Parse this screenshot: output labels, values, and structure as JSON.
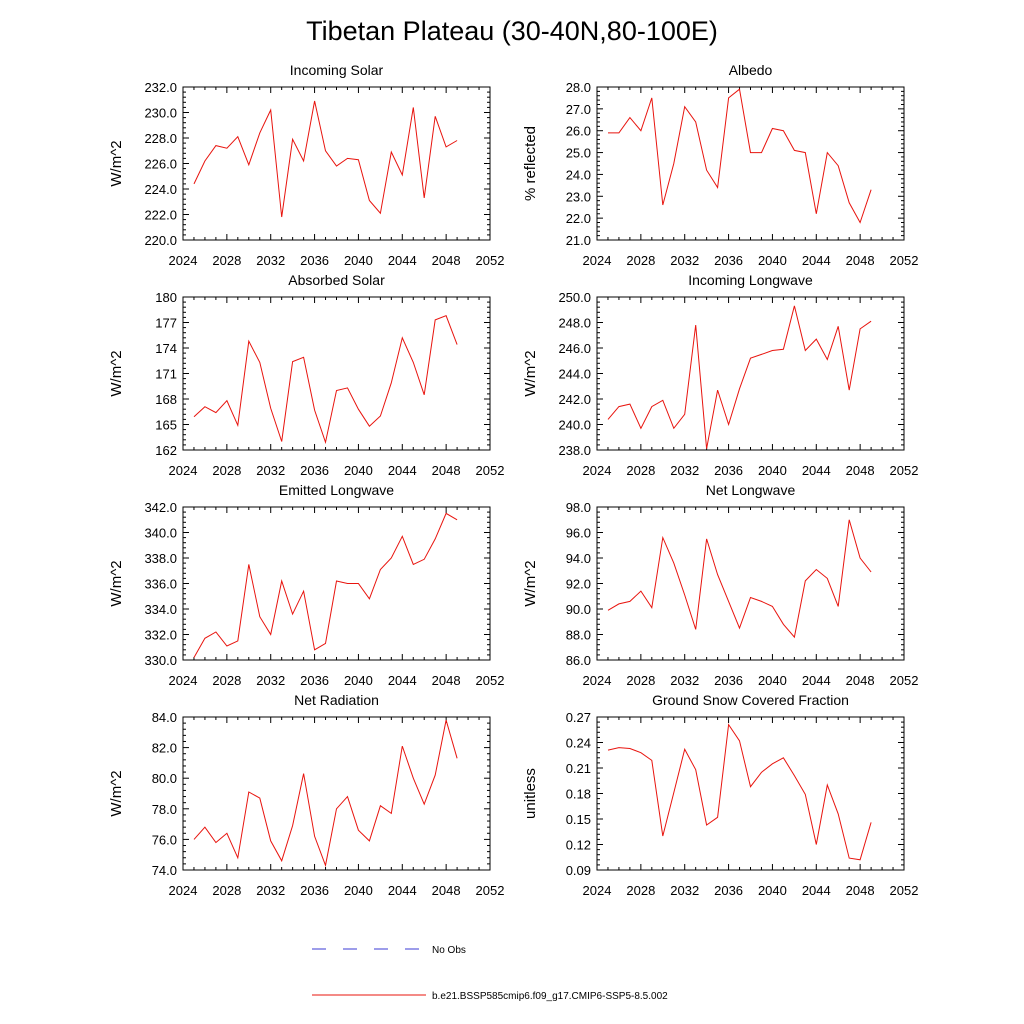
{
  "figure": {
    "title": "Tibetan Plateau (30-40N,80-100E)"
  },
  "legend": {
    "obs_label": "No Obs",
    "model_label": "b.e21.BSSP585cmip6.f09_g17.CMIP6-SSP5-8.5.002",
    "obs_color": "#3b3bd6",
    "model_color": "#e8140e"
  },
  "chart_data": [
    {
      "type": "line",
      "title": "Incoming Solar",
      "ylabel": "W/m^2",
      "xlim": [
        2024,
        2052
      ],
      "xticks": [
        2024,
        2028,
        2032,
        2036,
        2040,
        2044,
        2048,
        2052
      ],
      "ylim": [
        220,
        232
      ],
      "yticks": [
        220,
        222,
        224,
        226,
        228,
        230,
        232
      ],
      "ydecimals": 1,
      "series": [
        {
          "x": [
            2025,
            2026,
            2027,
            2028,
            2029,
            2030,
            2031,
            2032,
            2033,
            2034,
            2035,
            2036,
            2037,
            2038,
            2039,
            2040,
            2041,
            2042,
            2043,
            2044,
            2045,
            2046,
            2047,
            2048,
            2049
          ],
          "values": [
            224.4,
            226.2,
            227.4,
            227.2,
            228.1,
            225.9,
            228.4,
            230.2,
            221.8,
            227.9,
            226.2,
            230.9,
            227.0,
            225.8,
            226.4,
            226.3,
            223.1,
            222.1,
            226.9,
            225.1,
            230.4,
            223.3,
            229.7,
            227.3,
            227.8
          ]
        }
      ]
    },
    {
      "type": "line",
      "title": "Albedo",
      "ylabel": "% reflected",
      "xlim": [
        2024,
        2052
      ],
      "xticks": [
        2024,
        2028,
        2032,
        2036,
        2040,
        2044,
        2048,
        2052
      ],
      "ylim": [
        21,
        28
      ],
      "yticks": [
        21,
        22,
        23,
        24,
        25,
        26,
        27,
        28
      ],
      "ydecimals": 1,
      "series": [
        {
          "x": [
            2025,
            2026,
            2027,
            2028,
            2029,
            2030,
            2031,
            2032,
            2033,
            2034,
            2035,
            2036,
            2037,
            2038,
            2039,
            2040,
            2041,
            2042,
            2043,
            2044,
            2045,
            2046,
            2047,
            2048,
            2049
          ],
          "values": [
            25.9,
            25.9,
            26.6,
            26.0,
            27.5,
            22.6,
            24.5,
            27.1,
            26.4,
            24.2,
            23.4,
            27.5,
            27.9,
            25.0,
            25.0,
            26.1,
            26.0,
            25.1,
            25.0,
            22.2,
            25.0,
            24.4,
            22.7,
            21.8,
            23.3
          ]
        }
      ]
    },
    {
      "type": "line",
      "title": "Absorbed Solar",
      "ylabel": "W/m^2",
      "xlim": [
        2024,
        2052
      ],
      "xticks": [
        2024,
        2028,
        2032,
        2036,
        2040,
        2044,
        2048,
        2052
      ],
      "ylim": [
        162,
        180
      ],
      "yticks": [
        162,
        165,
        168,
        171,
        174,
        177,
        180
      ],
      "ydecimals": 0,
      "series": [
        {
          "x": [
            2025,
            2026,
            2027,
            2028,
            2029,
            2030,
            2031,
            2032,
            2033,
            2034,
            2035,
            2036,
            2037,
            2038,
            2039,
            2040,
            2041,
            2042,
            2043,
            2044,
            2045,
            2046,
            2047,
            2048,
            2049
          ],
          "values": [
            165.9,
            167.1,
            166.4,
            167.8,
            164.9,
            174.8,
            172.3,
            166.9,
            163.0,
            172.4,
            172.9,
            166.7,
            162.9,
            169.0,
            169.3,
            166.8,
            164.8,
            166.0,
            169.9,
            175.2,
            172.3,
            168.5,
            177.3,
            177.8,
            174.4
          ]
        }
      ]
    },
    {
      "type": "line",
      "title": "Incoming Longwave",
      "ylabel": "W/m^2",
      "xlim": [
        2024,
        2052
      ],
      "xticks": [
        2024,
        2028,
        2032,
        2036,
        2040,
        2044,
        2048,
        2052
      ],
      "ylim": [
        238,
        250
      ],
      "yticks": [
        238,
        240,
        242,
        244,
        246,
        248,
        250
      ],
      "ydecimals": 1,
      "series": [
        {
          "x": [
            2025,
            2026,
            2027,
            2028,
            2029,
            2030,
            2031,
            2032,
            2033,
            2034,
            2035,
            2036,
            2037,
            2038,
            2039,
            2040,
            2041,
            2042,
            2043,
            2044,
            2045,
            2046,
            2047,
            2048,
            2049
          ],
          "values": [
            240.4,
            241.4,
            241.6,
            239.7,
            241.4,
            241.9,
            239.7,
            240.8,
            247.8,
            238.1,
            242.7,
            240.0,
            242.8,
            245.2,
            245.5,
            245.8,
            245.9,
            249.3,
            245.8,
            246.7,
            245.1,
            247.7,
            242.7,
            247.5,
            248.1
          ]
        }
      ]
    },
    {
      "type": "line",
      "title": "Emitted Longwave",
      "ylabel": "W/m^2",
      "xlim": [
        2024,
        2052
      ],
      "xticks": [
        2024,
        2028,
        2032,
        2036,
        2040,
        2044,
        2048,
        2052
      ],
      "ylim": [
        330,
        342
      ],
      "yticks": [
        330,
        332,
        334,
        336,
        338,
        340,
        342
      ],
      "ydecimals": 1,
      "series": [
        {
          "x": [
            2025,
            2026,
            2027,
            2028,
            2029,
            2030,
            2031,
            2032,
            2033,
            2034,
            2035,
            2036,
            2037,
            2038,
            2039,
            2040,
            2041,
            2042,
            2043,
            2044,
            2045,
            2046,
            2047,
            2048,
            2049
          ],
          "values": [
            330.2,
            331.7,
            332.2,
            331.1,
            331.5,
            337.5,
            333.4,
            332.0,
            336.2,
            333.6,
            335.4,
            330.8,
            331.3,
            336.2,
            336.0,
            336.0,
            334.8,
            337.1,
            338.0,
            339.7,
            337.5,
            337.9,
            339.5,
            341.5,
            341.0
          ]
        }
      ]
    },
    {
      "type": "line",
      "title": "Net Longwave",
      "ylabel": "W/m^2",
      "xlim": [
        2024,
        2052
      ],
      "xticks": [
        2024,
        2028,
        2032,
        2036,
        2040,
        2044,
        2048,
        2052
      ],
      "ylim": [
        86,
        98
      ],
      "yticks": [
        86,
        88,
        90,
        92,
        94,
        96,
        98
      ],
      "ydecimals": 1,
      "series": [
        {
          "x": [
            2025,
            2026,
            2027,
            2028,
            2029,
            2030,
            2031,
            2032,
            2033,
            2034,
            2035,
            2036,
            2037,
            2038,
            2039,
            2040,
            2041,
            2042,
            2043,
            2044,
            2045,
            2046,
            2047,
            2048,
            2049
          ],
          "values": [
            89.9,
            90.4,
            90.6,
            91.4,
            90.1,
            95.6,
            93.6,
            91.1,
            88.4,
            95.5,
            92.7,
            90.6,
            88.5,
            90.9,
            90.6,
            90.2,
            88.8,
            87.8,
            92.2,
            93.1,
            92.4,
            90.2,
            97.0,
            94.0,
            92.9
          ]
        }
      ]
    },
    {
      "type": "line",
      "title": "Net Radiation",
      "ylabel": "W/m^2",
      "xlim": [
        2024,
        2052
      ],
      "xticks": [
        2024,
        2028,
        2032,
        2036,
        2040,
        2044,
        2048,
        2052
      ],
      "ylim": [
        74,
        84
      ],
      "yticks": [
        74,
        76,
        78,
        80,
        82,
        84
      ],
      "ydecimals": 1,
      "series": [
        {
          "x": [
            2025,
            2026,
            2027,
            2028,
            2029,
            2030,
            2031,
            2032,
            2033,
            2034,
            2035,
            2036,
            2037,
            2038,
            2039,
            2040,
            2041,
            2042,
            2043,
            2044,
            2045,
            2046,
            2047,
            2048,
            2049
          ],
          "values": [
            76.0,
            76.8,
            75.8,
            76.4,
            74.8,
            79.1,
            78.7,
            75.9,
            74.6,
            76.9,
            80.3,
            76.2,
            74.3,
            78.0,
            78.8,
            76.6,
            75.9,
            78.2,
            77.7,
            82.1,
            80.0,
            78.3,
            80.2,
            83.8,
            81.3
          ]
        }
      ]
    },
    {
      "type": "line",
      "title": "Ground Snow Covered Fraction",
      "ylabel": "unitless",
      "xlim": [
        2024,
        2052
      ],
      "xticks": [
        2024,
        2028,
        2032,
        2036,
        2040,
        2044,
        2048,
        2052
      ],
      "ylim": [
        0.09,
        0.27
      ],
      "yticks": [
        0.09,
        0.12,
        0.15,
        0.18,
        0.21,
        0.24,
        0.27
      ],
      "ydecimals": 2,
      "series": [
        {
          "x": [
            2025,
            2026,
            2027,
            2028,
            2029,
            2030,
            2031,
            2032,
            2033,
            2034,
            2035,
            2036,
            2037,
            2038,
            2039,
            2040,
            2041,
            2042,
            2043,
            2044,
            2045,
            2046,
            2047,
            2048,
            2049
          ],
          "values": [
            0.231,
            0.234,
            0.233,
            0.228,
            0.219,
            0.13,
            0.181,
            0.232,
            0.208,
            0.143,
            0.152,
            0.261,
            0.242,
            0.188,
            0.205,
            0.215,
            0.222,
            0.201,
            0.179,
            0.12,
            0.19,
            0.156,
            0.104,
            0.102,
            0.146
          ]
        }
      ]
    }
  ]
}
